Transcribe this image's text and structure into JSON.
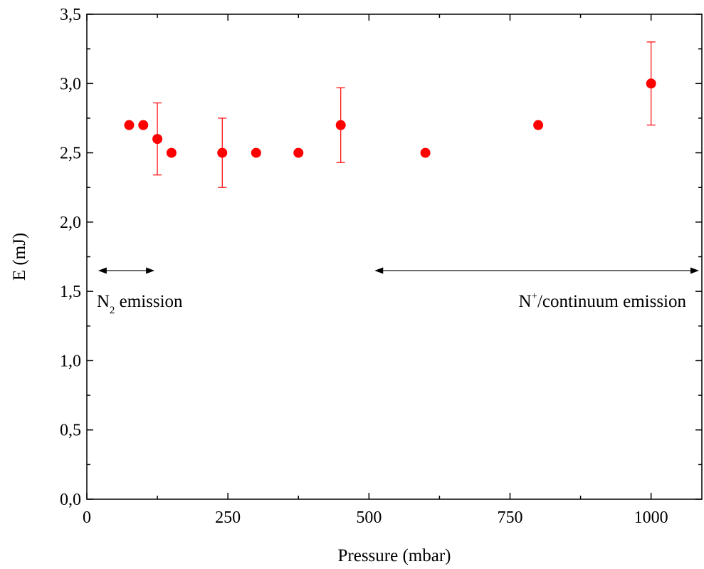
{
  "chart_data": {
    "type": "scatter",
    "title": "",
    "xlabel": "Pressure (mbar)",
    "ylabel": "E (mJ)",
    "xlim": [
      0,
      1090
    ],
    "ylim": [
      0,
      3.5
    ],
    "xticks": [
      0,
      250,
      500,
      750,
      1000
    ],
    "xtick_labels": [
      "0",
      "250",
      "500",
      "750",
      "1000"
    ],
    "yticks": [
      0,
      0.5,
      1,
      1.5,
      2,
      2.5,
      3,
      3.5
    ],
    "ytick_labels": [
      "0,0",
      "0,5",
      "1,0",
      "1,5",
      "2,0",
      "2,5",
      "3,0",
      "3,5"
    ],
    "grid": false,
    "marker_color": "#ff0000",
    "points": [
      {
        "x": 75,
        "y": 2.7
      },
      {
        "x": 100,
        "y": 2.7
      },
      {
        "x": 125,
        "y": 2.6,
        "err": 0.26
      },
      {
        "x": 150,
        "y": 2.5
      },
      {
        "x": 240,
        "y": 2.5,
        "err": 0.25
      },
      {
        "x": 300,
        "y": 2.5
      },
      {
        "x": 375,
        "y": 2.5
      },
      {
        "x": 450,
        "y": 2.7,
        "err": 0.27
      },
      {
        "x": 600,
        "y": 2.5
      },
      {
        "x": 800,
        "y": 2.7
      },
      {
        "x": 1000,
        "y": 3.0,
        "err": 0.3
      }
    ],
    "annotations": [
      {
        "label_main": "N",
        "label_script": "2",
        "label_rest": " emission",
        "script": "sub",
        "range": [
          20,
          120
        ],
        "y": 1.65
      },
      {
        "label_main": "N",
        "label_script": "+",
        "label_rest": "/continuum emission",
        "script": "super",
        "range": [
          510,
          1085
        ],
        "y": 1.65
      }
    ]
  }
}
